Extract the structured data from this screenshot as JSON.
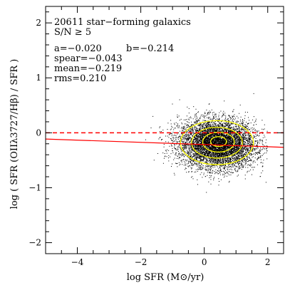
{
  "chart_data": {
    "type": "scatter",
    "xlabel": "log SFR (M⊙/yr)",
    "ylabel": "log ( SFR (OIIλ3727/Hβ) / SFR )",
    "xlim": [
      -5,
      2.5
    ],
    "ylim": [
      -2.2,
      2.3
    ],
    "xticks": [
      -4,
      -2,
      0,
      2
    ],
    "xtick_labels": [
      "−4",
      "−2",
      "0",
      "2"
    ],
    "yticks": [
      -2,
      -1,
      0,
      1,
      2
    ],
    "ytick_labels": [
      "−2",
      "−1",
      "0",
      "1",
      "2"
    ],
    "annotations": {
      "line1": "20611 star−forming galaxics",
      "line2": "S/N ≥ 5",
      "line3a": "a=−0.020",
      "line3b": "b=−0.214",
      "line4": "spear=−0.043",
      "line5": "mean=−0.219",
      "line6": "rms=0.210"
    },
    "cloud": {
      "n_points_drawn": 9000,
      "center": [
        0.4,
        -0.2
      ],
      "spread": [
        0.6,
        0.22
      ],
      "x_range": [
        -2.0,
        2.0
      ]
    },
    "contours": [
      {
        "center": [
          0.4,
          -0.18
        ],
        "rx": 1.15,
        "ry": 0.4
      },
      {
        "center": [
          0.4,
          -0.18
        ],
        "rx": 0.8,
        "ry": 0.28
      },
      {
        "center": [
          0.45,
          -0.17
        ],
        "rx": 0.5,
        "ry": 0.18
      },
      {
        "center": [
          0.45,
          -0.16
        ],
        "rx": 0.25,
        "ry": 0.09
      }
    ],
    "fit_line": {
      "a": -0.02,
      "b": -0.214,
      "color": "#ff0000"
    },
    "zero_line": {
      "y": 0,
      "color": "#ff0000",
      "style": "dashed"
    },
    "colors": {
      "points": "#000000",
      "contours": "#ffff00",
      "lines": "#ff0000"
    }
  }
}
